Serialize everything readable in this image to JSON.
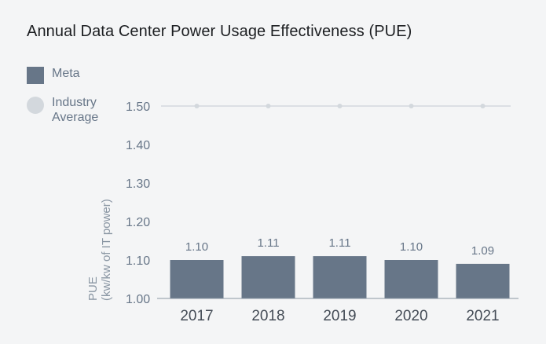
{
  "chart_data": {
    "type": "bar",
    "title": "Annual Data Center Power Usage Effectiveness (PUE)",
    "ylabel_line1": "PUE",
    "ylabel_line2": "(kw/kw of IT power)",
    "categories": [
      "2017",
      "2018",
      "2019",
      "2020",
      "2021"
    ],
    "series": [
      {
        "name": "Meta",
        "values": [
          1.1,
          1.11,
          1.11,
          1.1,
          1.09
        ],
        "labels": [
          "1.10",
          "1.11",
          "1.11",
          "1.10",
          "1.09"
        ],
        "color": "#677688"
      },
      {
        "name": "Industry Average",
        "values": [
          1.5,
          1.5,
          1.5,
          1.5,
          1.5
        ],
        "color": "#d3d8dd"
      }
    ],
    "ylim": [
      1.0,
      1.5
    ],
    "yticks": [
      "1.00",
      "1.10",
      "1.20",
      "1.30",
      "1.40",
      "1.50"
    ],
    "legend": [
      {
        "label_line1": "Meta",
        "label_line2": ""
      },
      {
        "label_line1": "Industry",
        "label_line2": "Average"
      }
    ],
    "legend_position": "left",
    "grid": false
  }
}
